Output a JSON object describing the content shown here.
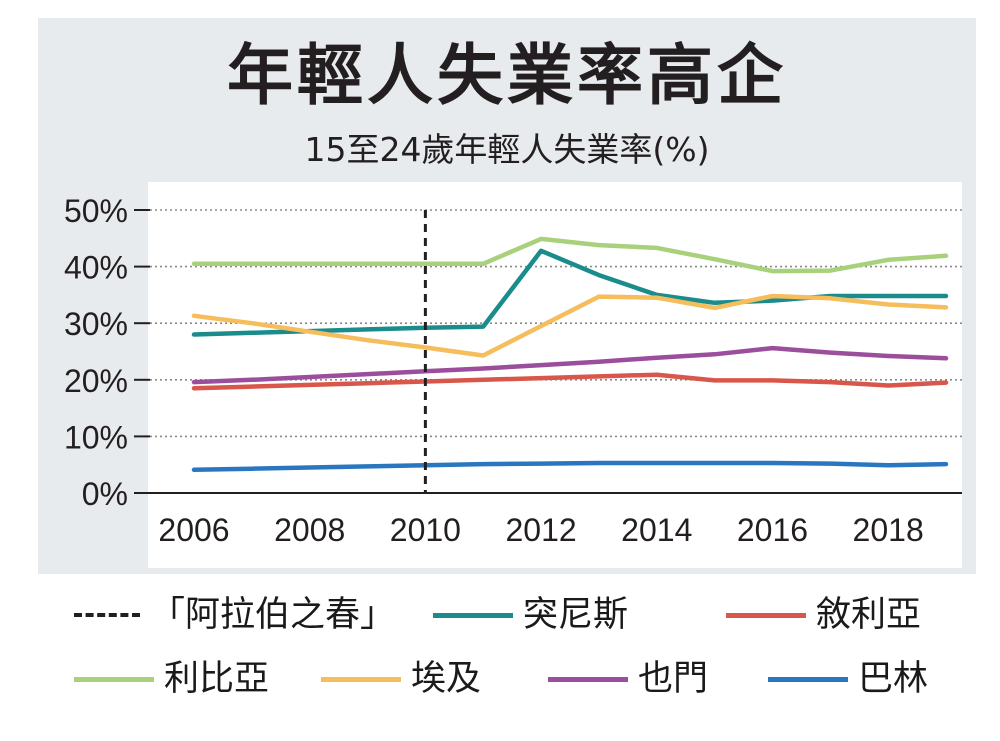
{
  "chart_data": {
    "type": "line",
    "title": "年輕人失業率高企",
    "subtitle": "15至24歲年輕人失業率(%)",
    "x": [
      2006,
      2007,
      2008,
      2009,
      2010,
      2011,
      2012,
      2013,
      2014,
      2015,
      2016,
      2017,
      2018,
      2019
    ],
    "xticks": [
      "2006",
      "2008",
      "2010",
      "2012",
      "2014",
      "2016",
      "2018"
    ],
    "ylim": [
      0,
      50
    ],
    "yticks": [
      "0%",
      "10%",
      "20%",
      "30%",
      "40%",
      "50%"
    ],
    "grid": true,
    "annotation_x": 2010,
    "series": [
      {
        "name": "突尼斯",
        "color": "#1b8c8c",
        "values": [
          28.0,
          28.3,
          28.6,
          28.9,
          29.2,
          29.4,
          42.8,
          38.5,
          35.0,
          33.6,
          34.0,
          34.8,
          34.8,
          34.8
        ]
      },
      {
        "name": "敘利亞",
        "color": "#d9574a",
        "values": [
          18.5,
          18.8,
          19.1,
          19.4,
          19.7,
          20.0,
          20.3,
          20.6,
          20.9,
          19.9,
          19.9,
          19.6,
          19.0,
          19.5
        ]
      },
      {
        "name": "利比亞",
        "color": "#a9d07b",
        "values": [
          40.5,
          40.5,
          40.5,
          40.5,
          40.5,
          40.5,
          44.9,
          43.8,
          43.3,
          41.3,
          39.2,
          39.3,
          41.2,
          41.9
        ]
      },
      {
        "name": "埃及",
        "color": "#f5bd5b",
        "values": [
          31.3,
          30.0,
          28.5,
          27.0,
          25.7,
          24.3,
          29.5,
          34.7,
          34.5,
          32.7,
          34.8,
          34.4,
          33.3,
          32.8
        ]
      },
      {
        "name": "也門",
        "color": "#9b4e9b",
        "values": [
          19.6,
          20.0,
          20.5,
          21.0,
          21.5,
          22.0,
          22.6,
          23.2,
          23.9,
          24.5,
          25.6,
          24.8,
          24.2,
          23.8
        ]
      },
      {
        "name": "巴林",
        "color": "#2b77bf",
        "values": [
          4.1,
          4.3,
          4.5,
          4.7,
          4.9,
          5.1,
          5.2,
          5.3,
          5.3,
          5.3,
          5.3,
          5.2,
          4.9,
          5.1
        ]
      }
    ]
  },
  "legend": [
    {
      "label": "「阿拉伯之春」",
      "color": "#231f20",
      "style": "dashed"
    },
    {
      "label": "突尼斯",
      "color": "#1b8c8c",
      "style": "solid"
    },
    {
      "label": "敘利亞",
      "color": "#d9574a",
      "style": "solid"
    },
    {
      "label": "利比亞",
      "color": "#a9d07b",
      "style": "solid"
    },
    {
      "label": "埃及",
      "color": "#f5bd5b",
      "style": "solid"
    },
    {
      "label": "也門",
      "color": "#9b4e9b",
      "style": "solid"
    },
    {
      "label": "巴林",
      "color": "#2b77bf",
      "style": "solid"
    }
  ]
}
